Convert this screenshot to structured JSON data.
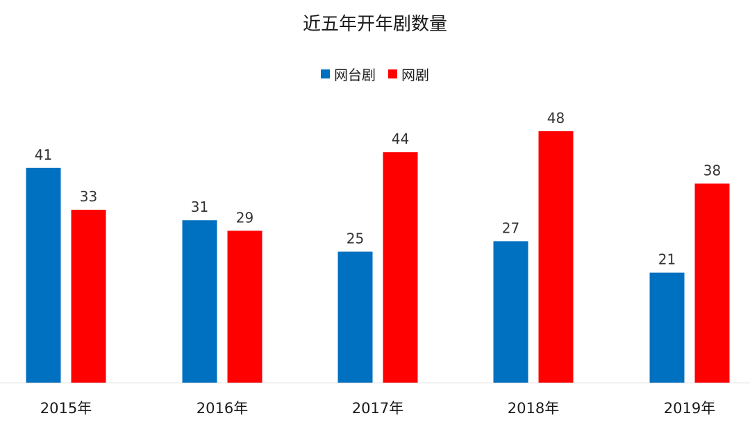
{
  "chart_data": {
    "type": "bar",
    "title": "近五年开年剧数量",
    "categories": [
      "2015年",
      "2016年",
      "2017年",
      "2018年",
      "2019年"
    ],
    "series": [
      {
        "name": "网台剧",
        "values": [
          41,
          31,
          25,
          27,
          21
        ],
        "color": "#0070C0"
      },
      {
        "name": "网剧",
        "values": [
          33,
          29,
          44,
          48,
          38
        ],
        "color": "#FF0000"
      }
    ],
    "ylim": [
      0,
      48
    ],
    "legend_position": "top-center",
    "grid": false,
    "data_labels": true,
    "axis_color": "#d9d9d9"
  }
}
